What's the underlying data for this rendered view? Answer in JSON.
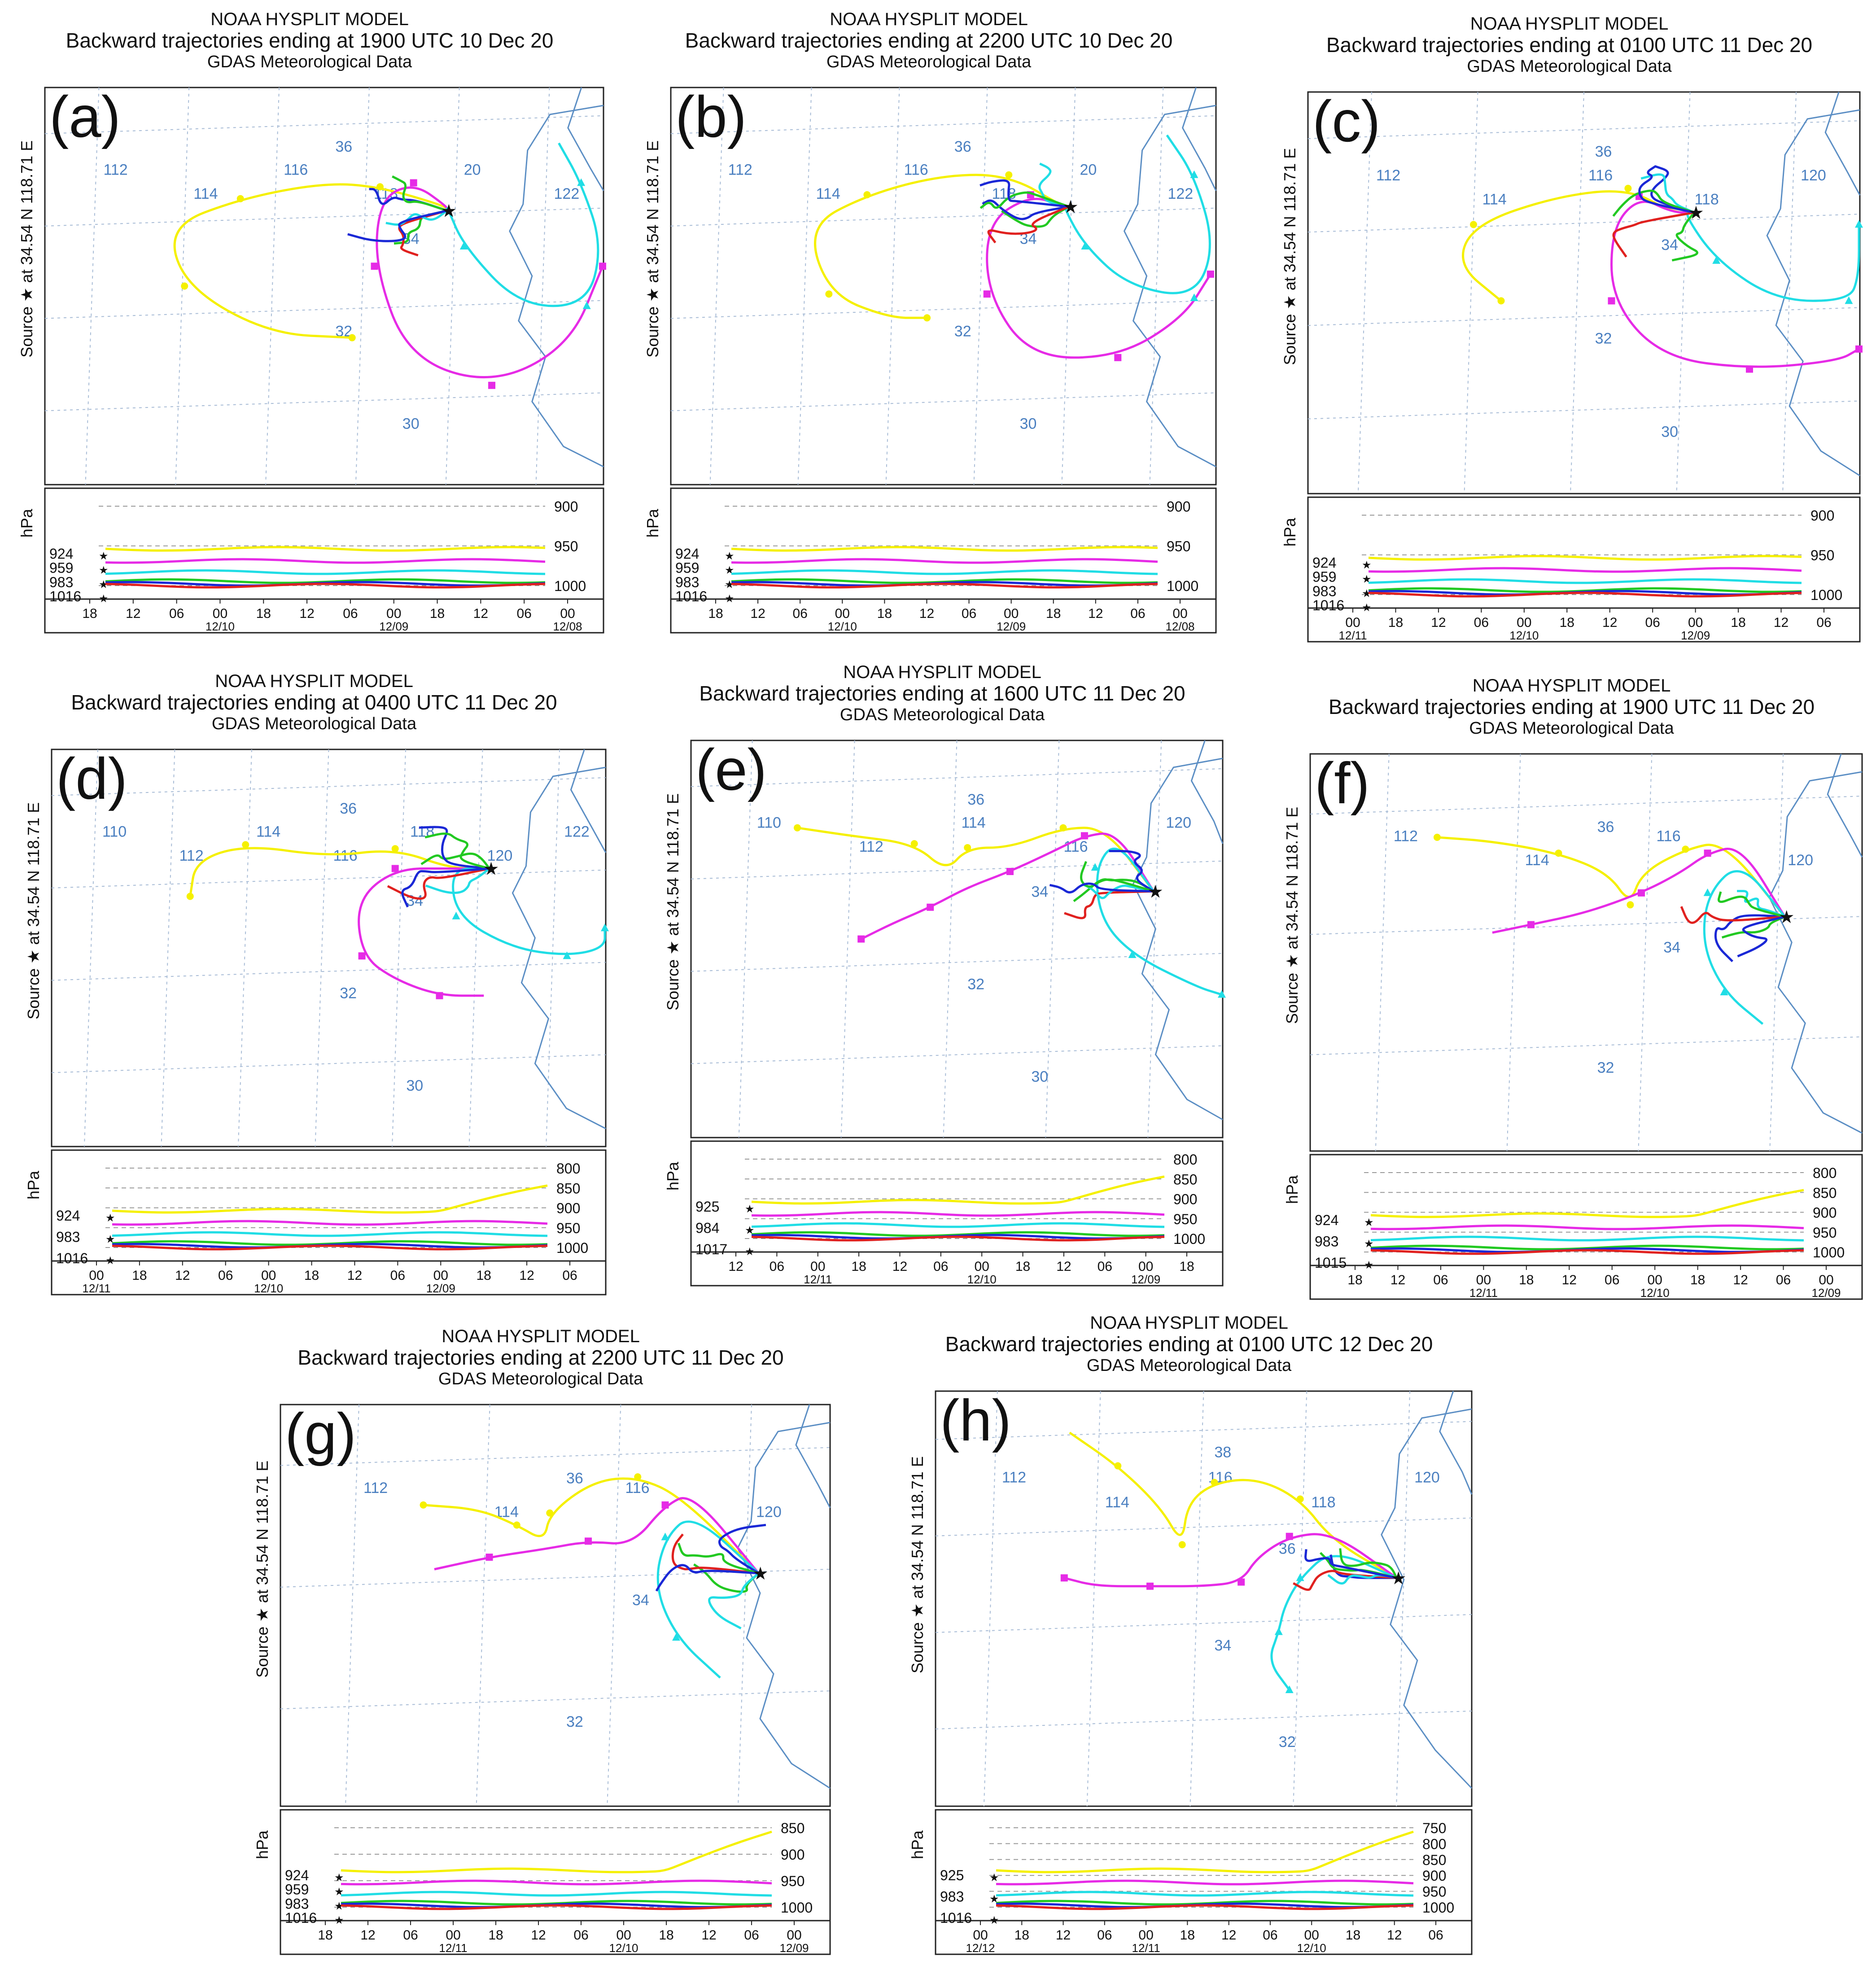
{
  "figure": {
    "model_title": "NOAA HYSPLIT MODEL",
    "met_data": "GDAS Meteorological Data",
    "source_label": "Source ★  at   34.54 N  118.71 E",
    "pressure_unit": "hPa",
    "colors": {
      "yellow": "#f5f000",
      "magenta": "#e62be6",
      "cyan": "#20dde5",
      "green": "#22c922",
      "blue": "#1a28d6",
      "red": "#e0211f",
      "black": "#111111",
      "coast": "#5b8ec4",
      "grid": "#a8bcd6",
      "gridlabel": "#4a7fc0"
    }
  },
  "chart_data": [
    {
      "label": "(a)",
      "type": "line",
      "title": "Backward trajectories ending at 1900 UTC 10 Dec 20",
      "lon_ticks": [
        "112",
        "114",
        "116",
        "118",
        "20",
        "122"
      ],
      "lat_ticks": [
        "36",
        "34",
        "32",
        "30"
      ],
      "start_levels": [
        "924",
        "959",
        "983",
        "1016"
      ],
      "right_levels": [
        "900",
        "950",
        "1000"
      ],
      "time_ticks": [
        "18",
        "12",
        "06",
        "00",
        "18",
        "12",
        "06",
        "00",
        "18",
        "12",
        "06",
        "00"
      ],
      "date_ticks": [
        "12/10",
        "12/09",
        "12/08"
      ]
    },
    {
      "label": "(b)",
      "type": "line",
      "title": "Backward trajectories ending at 2200 UTC 10 Dec 20",
      "lon_ticks": [
        "112",
        "114",
        "116",
        "118",
        "20",
        "122"
      ],
      "lat_ticks": [
        "36",
        "34",
        "32",
        "30"
      ],
      "start_levels": [
        "924",
        "959",
        "983",
        "1016"
      ],
      "right_levels": [
        "900",
        "950",
        "1000"
      ],
      "time_ticks": [
        "18",
        "12",
        "06",
        "00",
        "18",
        "12",
        "06",
        "00",
        "18",
        "12",
        "06",
        "00"
      ],
      "date_ticks": [
        "12/10",
        "12/09",
        "12/08"
      ]
    },
    {
      "label": "(c)",
      "type": "line",
      "title": "Backward trajectories ending at 0100 UTC 11 Dec 20",
      "lon_ticks": [
        "112",
        "114",
        "116",
        "118",
        "120"
      ],
      "lat_ticks": [
        "36",
        "34",
        "32",
        "30"
      ],
      "start_levels": [
        "924",
        "959",
        "983",
        "1016"
      ],
      "right_levels": [
        "900",
        "950",
        "1000"
      ],
      "time_ticks": [
        "00",
        "18",
        "12",
        "06",
        "00",
        "18",
        "12",
        "06",
        "00",
        "18",
        "12",
        "06"
      ],
      "date_ticks": [
        "12/11",
        "12/10",
        "12/09"
      ]
    },
    {
      "label": "(d)",
      "type": "line",
      "title": "Backward trajectories ending at 0400 UTC 11 Dec 20",
      "lon_ticks": [
        "110",
        "112",
        "114",
        "116",
        "118",
        "120",
        "122"
      ],
      "lat_ticks": [
        "36",
        "34",
        "32",
        "30"
      ],
      "start_levels": [
        "924",
        "983",
        "1016"
      ],
      "right_levels": [
        "800",
        "850",
        "900",
        "950",
        "1000"
      ],
      "time_ticks": [
        "00",
        "18",
        "12",
        "06",
        "00",
        "18",
        "12",
        "06",
        "00",
        "18",
        "12",
        "06"
      ],
      "date_ticks": [
        "12/11",
        "12/10",
        "12/09"
      ]
    },
    {
      "label": "(e)",
      "type": "line",
      "title": "Backward trajectories ending at 1600 UTC 11 Dec 20",
      "lon_ticks": [
        "110",
        "112",
        "114",
        "116",
        "120"
      ],
      "lat_ticks": [
        "36",
        "34",
        "32",
        "30"
      ],
      "start_levels": [
        "925",
        "984",
        "1017"
      ],
      "right_levels": [
        "800",
        "850",
        "900",
        "950",
        "1000"
      ],
      "time_ticks": [
        "12",
        "06",
        "00",
        "18",
        "12",
        "06",
        "00",
        "18",
        "12",
        "06",
        "00",
        "18"
      ],
      "date_ticks": [
        "12/11",
        "12/10",
        "12/09"
      ]
    },
    {
      "label": "(f)",
      "type": "line",
      "title": "Backward trajectories ending at 1900 UTC 11 Dec 20",
      "lon_ticks": [
        "112",
        "114",
        "116",
        "120"
      ],
      "lat_ticks": [
        "36",
        "34",
        "32"
      ],
      "start_levels": [
        "924",
        "983",
        "1015"
      ],
      "right_levels": [
        "800",
        "850",
        "900",
        "950",
        "1000"
      ],
      "time_ticks": [
        "18",
        "12",
        "06",
        "00",
        "18",
        "12",
        "06",
        "00",
        "18",
        "12",
        "06",
        "00"
      ],
      "date_ticks": [
        "12/11",
        "12/10",
        "12/09"
      ]
    },
    {
      "label": "(g)",
      "type": "line",
      "title": "Backward trajectories ending at 2200 UTC 11 Dec 20",
      "lon_ticks": [
        "112",
        "114",
        "116",
        "120"
      ],
      "lat_ticks": [
        "36",
        "34",
        "32"
      ],
      "start_levels": [
        "924",
        "959",
        "983",
        "1016"
      ],
      "right_levels": [
        "850",
        "900",
        "950",
        "1000"
      ],
      "time_ticks": [
        "18",
        "12",
        "06",
        "00",
        "18",
        "12",
        "06",
        "00",
        "18",
        "12",
        "06",
        "00"
      ],
      "date_ticks": [
        "12/11",
        "12/10",
        "12/09"
      ]
    },
    {
      "label": "(h)",
      "type": "line",
      "title": "Backward trajectories ending at 0100 UTC 12 Dec 20",
      "lon_ticks": [
        "112",
        "114",
        "116",
        "118",
        "120"
      ],
      "lat_ticks": [
        "38",
        "36",
        "34",
        "32"
      ],
      "start_levels": [
        "925",
        "983",
        "1016"
      ],
      "right_levels": [
        "750",
        "800",
        "850",
        "900",
        "950",
        "1000"
      ],
      "time_ticks": [
        "00",
        "18",
        "12",
        "06",
        "00",
        "18",
        "12",
        "06",
        "00",
        "18",
        "12",
        "06"
      ],
      "date_ticks": [
        "12/12",
        "12/11",
        "12/10"
      ]
    }
  ]
}
